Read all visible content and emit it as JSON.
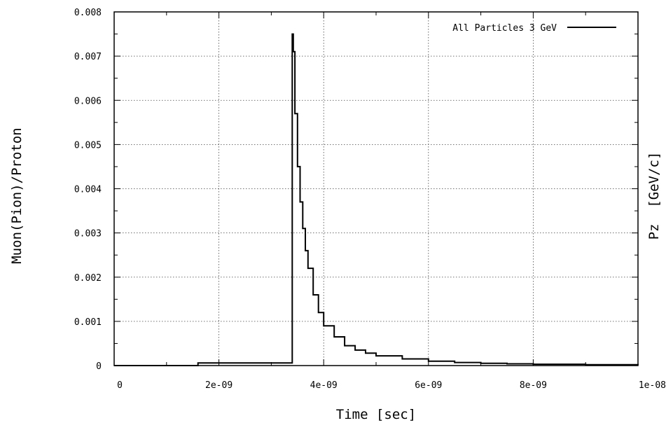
{
  "chart_data": {
    "type": "line",
    "xlabel": "Time [sec]",
    "ylabel": "Muon(Pion)/Proton",
    "y2label": "Pz  [GeV/c]",
    "xlim": [
      0,
      1e-08
    ],
    "ylim": [
      0,
      0.008
    ],
    "x_ticks": [
      0,
      2e-09,
      4e-09,
      6e-09,
      8e-09,
      1e-08
    ],
    "x_tick_labels": [
      "0",
      "2e-09",
      "4e-09",
      "6e-09",
      "8e-09",
      "1e-08"
    ],
    "y_ticks": [
      0,
      0.001,
      0.002,
      0.003,
      0.004,
      0.005,
      0.006,
      0.007,
      0.008
    ],
    "y_tick_labels": [
      "0",
      "0.001",
      "0.002",
      "0.003",
      "0.004",
      "0.005",
      "0.006",
      "0.007",
      "0.008"
    ],
    "grid": true,
    "legend_position": "top-right",
    "series": [
      {
        "name": "All Particles 3 GeV",
        "color": "#000000",
        "step": true,
        "x": [
          0,
          1.6e-09,
          1.6e-09,
          3.33e-09,
          3.4e-09,
          3.42e-09,
          3.45e-09,
          3.5e-09,
          3.55e-09,
          3.6e-09,
          3.65e-09,
          3.7e-09,
          3.8e-09,
          3.9e-09,
          4e-09,
          4.2e-09,
          4.4e-09,
          4.6e-09,
          4.8e-09,
          5e-09,
          5.5e-09,
          6e-09,
          6.5e-09,
          7e-09,
          7.5e-09,
          8e-09,
          9e-09,
          1e-08
        ],
        "y": [
          0,
          0,
          6e-05,
          6e-05,
          0.0075,
          0.0071,
          0.0057,
          0.0045,
          0.0037,
          0.0031,
          0.0026,
          0.0022,
          0.0016,
          0.0012,
          0.0009,
          0.00065,
          0.00045,
          0.00035,
          0.00028,
          0.00022,
          0.00015,
          0.0001,
          7e-05,
          5e-05,
          4e-05,
          3e-05,
          2e-05,
          1e-05
        ]
      }
    ]
  }
}
